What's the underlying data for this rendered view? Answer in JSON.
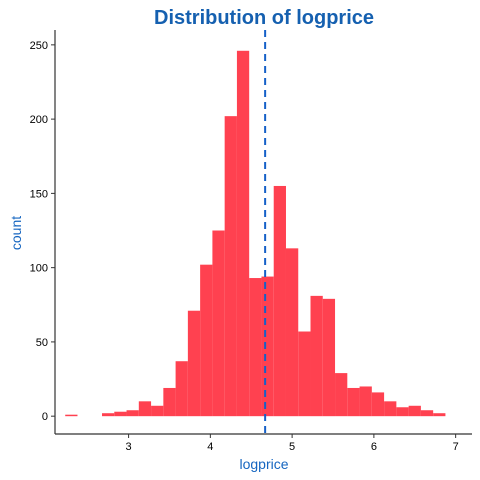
{
  "chart_data": {
    "type": "bar",
    "title": "Distribution of logprice",
    "xlabel": "logprice",
    "ylabel": "count",
    "xlim": [
      2.1,
      7.2
    ],
    "ylim": [
      -12,
      260
    ],
    "xticks": [
      3,
      4,
      5,
      6,
      7
    ],
    "yticks": [
      0,
      50,
      100,
      150,
      200,
      250
    ],
    "bin_width": 0.15,
    "bins": [
      {
        "x": 2.3,
        "count": 1
      },
      {
        "x": 2.45,
        "count": 0
      },
      {
        "x": 2.6,
        "count": 0
      },
      {
        "x": 2.75,
        "count": 2
      },
      {
        "x": 2.9,
        "count": 3
      },
      {
        "x": 3.05,
        "count": 4
      },
      {
        "x": 3.2,
        "count": 10
      },
      {
        "x": 3.35,
        "count": 7
      },
      {
        "x": 3.5,
        "count": 19
      },
      {
        "x": 3.65,
        "count": 37
      },
      {
        "x": 3.8,
        "count": 71
      },
      {
        "x": 3.95,
        "count": 102
      },
      {
        "x": 4.1,
        "count": 125
      },
      {
        "x": 4.25,
        "count": 202
      },
      {
        "x": 4.4,
        "count": 246
      },
      {
        "x": 4.55,
        "count": 93
      },
      {
        "x": 4.7,
        "count": 94
      },
      {
        "x": 4.85,
        "count": 155
      },
      {
        "x": 5.0,
        "count": 113
      },
      {
        "x": 5.15,
        "count": 57
      },
      {
        "x": 5.3,
        "count": 81
      },
      {
        "x": 5.45,
        "count": 79
      },
      {
        "x": 5.6,
        "count": 29
      },
      {
        "x": 5.75,
        "count": 19
      },
      {
        "x": 5.9,
        "count": 20
      },
      {
        "x": 6.05,
        "count": 16
      },
      {
        "x": 6.2,
        "count": 10
      },
      {
        "x": 6.35,
        "count": 6
      },
      {
        "x": 6.5,
        "count": 7
      },
      {
        "x": 6.65,
        "count": 4
      },
      {
        "x": 6.8,
        "count": 2
      }
    ],
    "mean_line": {
      "x": 4.67,
      "style": "dashed"
    },
    "grid": false,
    "colors": {
      "bar": "#ff4150",
      "mean_line": "#1560c8",
      "title": "#1560b0",
      "axis_title": "#1565c0",
      "axis": "#333333"
    }
  }
}
